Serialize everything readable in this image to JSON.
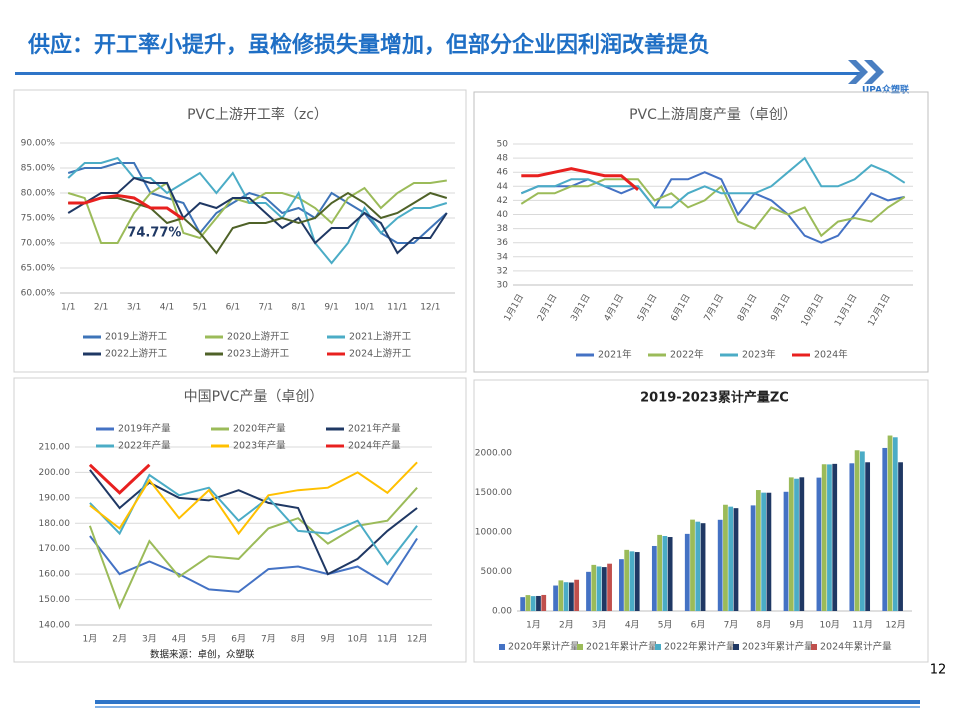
{
  "page": {
    "title": "供应：开工率小提升，虽检修损失量增加，但部分企业因利润改善提负",
    "logo": "UPA众塑联",
    "number": "12"
  },
  "chart_data": [
    {
      "type": "line",
      "title": "PVC上游开工率（zc）",
      "legend": "bottom",
      "categories": [
        "1/1",
        null,
        "2/1",
        null,
        "3/1",
        null,
        "4/1",
        null,
        "5/1",
        null,
        "6/1",
        null,
        "7/1",
        null,
        "8/1",
        null,
        "9/1",
        null,
        "10/1",
        null,
        "11/1",
        null,
        "12/1",
        null
      ],
      "ylim": [
        60,
        90
      ],
      "yticks": [
        {
          "value": 60,
          "label": "60.00%"
        },
        {
          "value": 65,
          "label": "65.00%"
        },
        {
          "value": 70,
          "label": "70.00%"
        },
        {
          "value": 75,
          "label": "75.00%"
        },
        {
          "value": 80,
          "label": "80.00%"
        },
        {
          "value": 85,
          "label": "85.00%"
        },
        {
          "value": 90,
          "label": "90.00%"
        }
      ],
      "grid": true,
      "annotation": {
        "text": "74.77%",
        "series": 5,
        "index": 7
      },
      "series": [
        {
          "name": "2019上游开工",
          "color": "#3e74b8",
          "values": [
            84,
            85,
            85,
            86,
            86,
            80,
            79,
            78,
            72,
            76,
            78,
            80,
            79,
            76,
            77,
            75,
            80,
            78,
            76,
            72,
            70,
            70,
            73,
            76
          ]
        },
        {
          "name": "2020上游开工",
          "color": "#9bbb59",
          "values": [
            80,
            79,
            70,
            70,
            76,
            80,
            82,
            72,
            71,
            75,
            79,
            78,
            80,
            80,
            79,
            77,
            74,
            79,
            81,
            77,
            80,
            82,
            82,
            82.5
          ]
        },
        {
          "name": "2021上游开工",
          "color": "#4bacc6",
          "values": [
            83,
            86,
            86,
            87,
            83,
            83,
            80,
            82,
            84,
            80,
            84,
            78,
            78,
            75,
            80,
            70,
            66,
            70,
            77,
            72,
            75,
            77,
            77,
            78
          ]
        },
        {
          "name": "2022上游开工",
          "color": "#1f3864",
          "values": [
            76,
            78,
            80,
            80,
            83,
            82,
            82,
            75,
            78,
            77,
            79,
            79,
            76,
            73,
            75,
            70,
            73,
            73,
            76,
            74,
            68,
            71,
            71,
            76
          ]
        },
        {
          "name": "2023上游开工",
          "color": "#4f6228",
          "values": [
            78,
            78,
            79,
            79,
            78,
            77,
            74,
            75,
            72,
            68,
            73,
            74,
            74,
            75,
            74,
            75,
            78,
            80,
            78,
            75,
            76,
            78,
            80,
            79
          ]
        },
        {
          "name": "2024上游开工",
          "color": "#e8201f",
          "values": [
            78,
            78,
            79,
            79.5,
            79,
            77,
            77,
            74.77,
            null,
            null,
            null,
            null,
            null,
            null,
            null,
            null,
            null,
            null,
            null,
            null,
            null,
            null,
            null,
            null
          ]
        }
      ]
    },
    {
      "type": "line",
      "title": "PVC上游周度产量（卓创）",
      "legend": "bottom",
      "rotate_x": true,
      "categories": [
        "1月1日",
        null,
        "2月1日",
        null,
        "3月1日",
        null,
        "4月1日",
        null,
        "5月1日",
        null,
        "6月1日",
        null,
        "7月1日",
        null,
        "8月1日",
        null,
        "9月1日",
        null,
        "10月1日",
        null,
        "11月1日",
        null,
        "12月1日",
        null
      ],
      "ylim": [
        30,
        50
      ],
      "yticks": [
        30,
        32,
        34,
        36,
        38,
        40,
        42,
        44,
        46,
        48,
        50
      ],
      "grid": true,
      "series": [
        {
          "name": "2021年",
          "color": "#4472c4",
          "values": [
            43,
            44,
            44,
            44,
            45,
            44,
            43,
            44,
            41,
            45,
            45,
            46,
            45,
            40,
            43,
            42,
            40,
            37,
            36,
            37,
            40,
            43,
            42,
            42.5
          ]
        },
        {
          "name": "2022年",
          "color": "#9bbb59",
          "values": [
            41.5,
            43,
            43,
            44,
            44,
            45,
            45,
            45,
            42,
            43,
            41,
            42,
            44,
            39,
            38,
            41,
            40,
            41,
            37,
            39,
            39.5,
            39,
            41,
            42.5
          ]
        },
        {
          "name": "2023年",
          "color": "#4bacc6",
          "values": [
            43,
            44,
            44,
            45,
            45,
            44,
            44,
            44,
            41,
            41,
            43,
            44,
            43,
            43,
            43,
            44,
            46,
            48,
            44,
            44,
            45,
            47,
            46,
            44.5
          ]
        },
        {
          "name": "2024年",
          "color": "#e8201f",
          "values": [
            45.5,
            45.5,
            46,
            46.5,
            46,
            45.5,
            45.5,
            43.5,
            null,
            null,
            null,
            null,
            null,
            null,
            null,
            null,
            null,
            null,
            null,
            null,
            null,
            null,
            null,
            null
          ]
        }
      ]
    },
    {
      "type": "line",
      "title": "中国PVC产量（卓创）",
      "legend": "top",
      "source": "数据来源：卓创，众塑联",
      "categories": [
        "1月",
        "2月",
        "3月",
        "4月",
        "5月",
        "6月",
        "7月",
        "8月",
        "9月",
        "10月",
        "11月",
        "12月"
      ],
      "ylim": [
        140,
        210
      ],
      "yticks": [
        {
          "value": 140,
          "label": "140.00"
        },
        {
          "value": 150,
          "label": "150.00"
        },
        {
          "value": 160,
          "label": "160.00"
        },
        {
          "value": 170,
          "label": "170.00"
        },
        {
          "value": 180,
          "label": "180.00"
        },
        {
          "value": 190,
          "label": "190.00"
        },
        {
          "value": 200,
          "label": "200.00"
        },
        {
          "value": 210,
          "label": "210.00"
        }
      ],
      "grid": true,
      "series": [
        {
          "name": "2019年产量",
          "color": "#4472c4",
          "values": [
            175,
            160,
            165,
            160,
            154,
            153,
            162,
            163,
            160,
            163,
            156,
            174
          ]
        },
        {
          "name": "2020年产量",
          "color": "#9bbb59",
          "values": [
            179,
            147,
            173,
            159,
            167,
            166,
            178,
            182,
            172,
            179,
            181,
            194
          ]
        },
        {
          "name": "2021年产量",
          "color": "#1f3864",
          "values": [
            201,
            186,
            196,
            190,
            189,
            193,
            188,
            186,
            160,
            166,
            177,
            186
          ]
        },
        {
          "name": "2022年产量",
          "color": "#4bacc6",
          "values": [
            188,
            176,
            199,
            191,
            194,
            181,
            190,
            177,
            176,
            181,
            164,
            179
          ]
        },
        {
          "name": "2023年产量",
          "color": "#ffc000",
          "values": [
            187,
            178,
            197,
            182,
            193,
            176,
            191,
            193,
            194,
            200,
            192,
            204
          ]
        },
        {
          "name": "2024年产量",
          "color": "#e8201f",
          "values": [
            203,
            192,
            203,
            null,
            null,
            null,
            null,
            null,
            null,
            null,
            null,
            null
          ]
        }
      ]
    },
    {
      "type": "bar",
      "title": "2019-2023累计产量ZC",
      "legend": "bottom",
      "categories": [
        "1月",
        "2月",
        "3月",
        "4月",
        "5月",
        "6月",
        "7月",
        "8月",
        "9月",
        "10月",
        "11月",
        "12月"
      ],
      "ylim": [
        0,
        2250
      ],
      "yticks": [
        {
          "value": 0,
          "label": "0.00"
        },
        {
          "value": 500,
          "label": "500.00"
        },
        {
          "value": 1000,
          "label": "1000.00"
        },
        {
          "value": 1500,
          "label": "1500.00"
        },
        {
          "value": 2000,
          "label": "2000.00"
        }
      ],
      "grid": false,
      "series": [
        {
          "name": "2020年累计产量",
          "color": "#4472c4",
          "values": [
            175,
            322,
            495,
            655,
            822,
            975,
            1153,
            1335,
            1507,
            1686,
            1867,
            2061
          ]
        },
        {
          "name": "2021年累计产量",
          "color": "#9bbb59",
          "values": [
            201,
            387,
            583,
            773,
            962,
            1155,
            1343,
            1529,
            1689,
            1855,
            2032,
            2218
          ]
        },
        {
          "name": "2022年累计产量",
          "color": "#4bacc6",
          "values": [
            188,
            364,
            563,
            754,
            948,
            1129,
            1319,
            1496,
            1672,
            1853,
            2017,
            2196
          ]
        },
        {
          "name": "2023年累计产量",
          "color": "#1f3864",
          "values": [
            190,
            360,
            555,
            745,
            935,
            1110,
            1300,
            1495,
            1690,
            1860,
            1880,
            1880
          ]
        },
        {
          "name": "2024年累计产量",
          "color": "#c0504d",
          "values": [
            203,
            395,
            598,
            null,
            null,
            null,
            null,
            null,
            null,
            null,
            null,
            null
          ]
        }
      ]
    }
  ]
}
